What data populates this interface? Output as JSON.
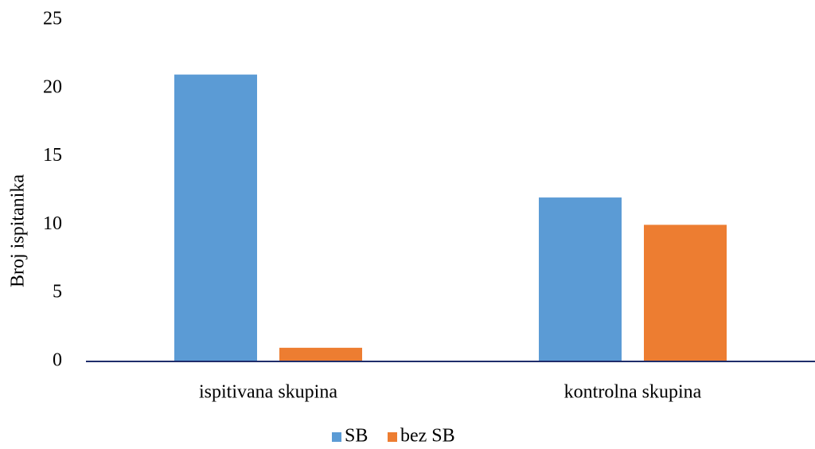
{
  "chart_data": {
    "type": "bar",
    "y_label": "Broj ispitanika",
    "categories": [
      "ispitivana skupina",
      "kontrolna skupina"
    ],
    "series": [
      {
        "name": "SB",
        "color": "#5b9bd5",
        "values": [
          21,
          12
        ]
      },
      {
        "name": "bez SB",
        "color": "#ed7d31",
        "values": [
          1,
          10
        ]
      }
    ],
    "ylim": [
      0,
      25
    ],
    "yticks": [
      0,
      5,
      10,
      15,
      20,
      25
    ],
    "grid": false,
    "legend": "bottom"
  }
}
